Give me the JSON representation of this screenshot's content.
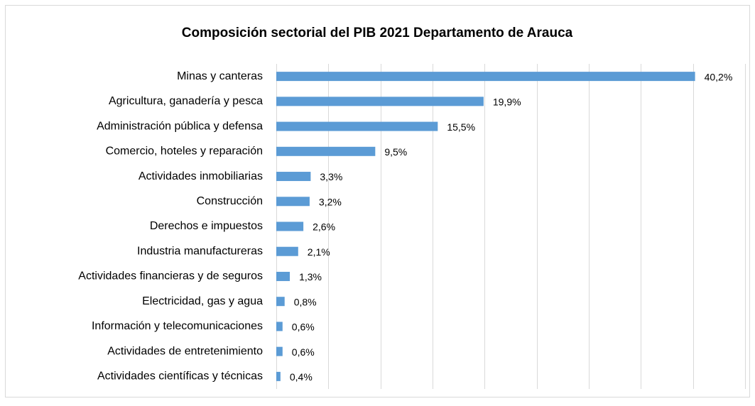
{
  "chart_data": {
    "type": "hbar",
    "title": "Composición sectorial del PIB 2021 Departamento de Arauca",
    "categories": [
      "Minas y canteras",
      "Agricultura, ganadería y pesca",
      "Administración pública y defensa",
      "Comercio, hoteles y reparación",
      "Actividades inmobiliarias",
      "Construcción",
      "Derechos e impuestos",
      "Industria manufactureras",
      "Actividades financieras y de seguros",
      "Electricidad, gas y agua",
      "Información y telecomunicaciones",
      "Actividades de entretenimiento",
      "Actividades científicas y técnicas"
    ],
    "values": [
      40.2,
      19.9,
      15.5,
      9.5,
      3.3,
      3.2,
      2.6,
      2.1,
      1.3,
      0.8,
      0.6,
      0.6,
      0.4
    ],
    "value_labels": [
      "40,2%",
      "19,9%",
      "15,5%",
      "9,5%",
      "3,3%",
      "3,2%",
      "2,6%",
      "2,1%",
      "1,3%",
      "0,8%",
      "0,6%",
      "0,6%",
      "0,4%"
    ],
    "color": "#5b9bd5",
    "xlim": [
      0,
      45
    ],
    "xticks": [
      0,
      5,
      10,
      15,
      20,
      25,
      30,
      35,
      40,
      45
    ],
    "grid": true
  }
}
